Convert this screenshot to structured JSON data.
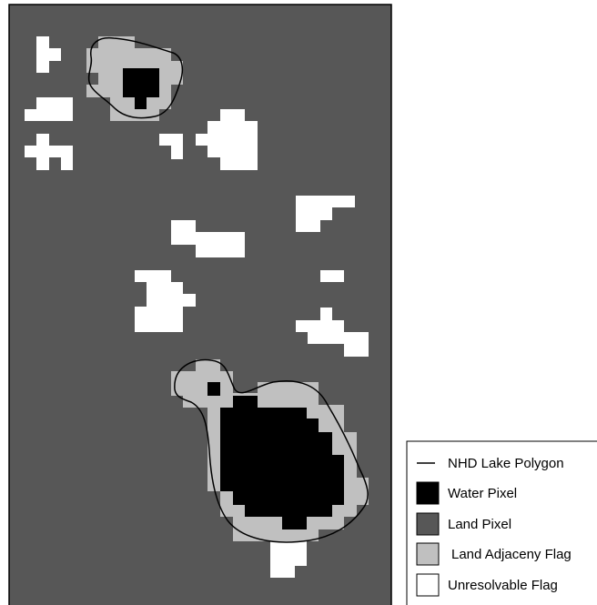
{
  "legend": {
    "items": [
      "NHD Lake Polygon",
      "Water Pixel",
      "Land Pixel",
      "Land Adjaceny Flag",
      "Unresolvable Flag"
    ]
  }
}
